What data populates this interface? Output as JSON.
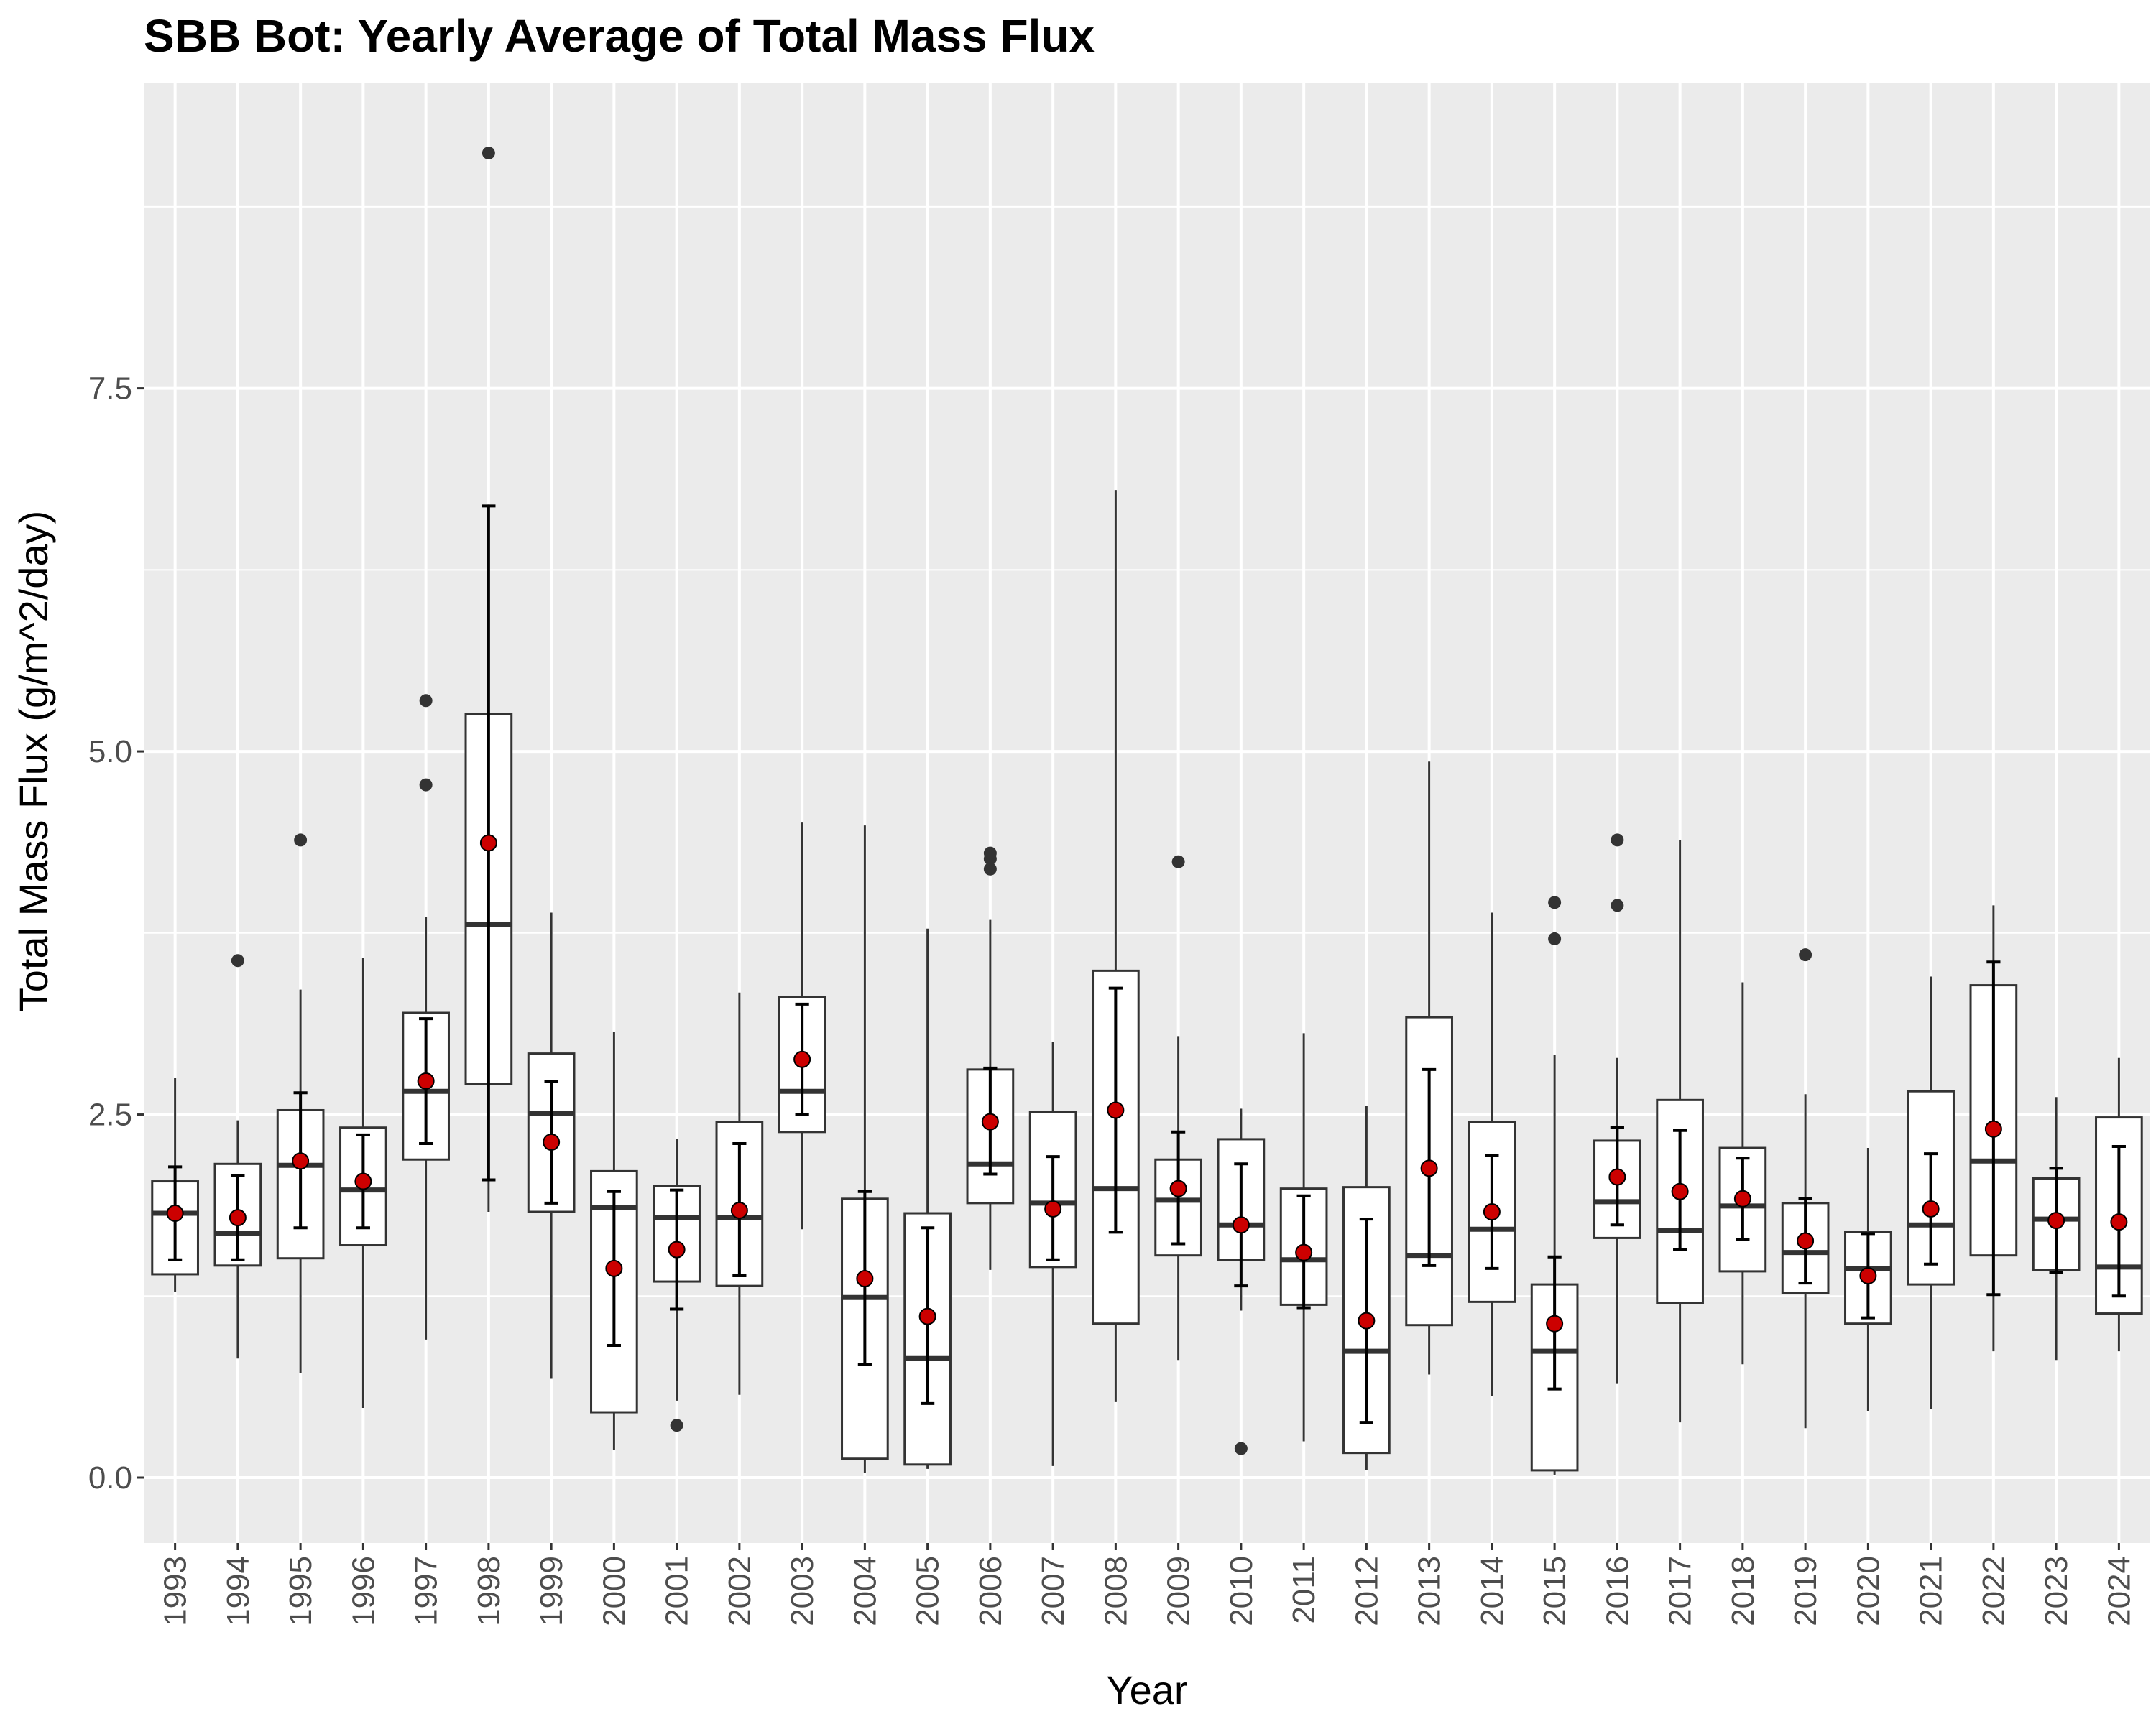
{
  "chart_data": {
    "type": "box",
    "title": "SBB Bot: Yearly Average of Total Mass Flux",
    "xlabel": "Year",
    "ylabel": "Total Mass Flux (g/m^2/day)",
    "ylim": [
      -0.45,
      9.6
    ],
    "yticks": [
      0.0,
      2.5,
      5.0,
      7.5
    ],
    "ytick_labels": [
      "0.0",
      "2.5",
      "5.0",
      "7.5"
    ],
    "grid": true,
    "legend": "none",
    "colors": {
      "panel": "#ebebeb",
      "grid": "#ffffff",
      "box_fill": "#ffffff",
      "box_line": "#333333",
      "median": "#333333",
      "mean_point": "#cc0000",
      "outlier": "#333333",
      "error_bar": "#000000"
    },
    "boxes": [
      {
        "year": "1993",
        "whisker_low": 1.28,
        "q1": 1.4,
        "median": 1.82,
        "q3": 2.04,
        "whisker_high": 2.75,
        "mean": 1.82,
        "mean_low": 1.5,
        "mean_high": 2.14,
        "outliers": []
      },
      {
        "year": "1994",
        "whisker_low": 0.82,
        "q1": 1.46,
        "median": 1.68,
        "q3": 2.16,
        "whisker_high": 2.46,
        "mean": 1.79,
        "mean_low": 1.5,
        "mean_high": 2.08,
        "outliers": [
          3.56
        ]
      },
      {
        "year": "1995",
        "whisker_low": 0.72,
        "q1": 1.51,
        "median": 2.15,
        "q3": 2.53,
        "whisker_high": 3.36,
        "mean": 2.18,
        "mean_low": 1.72,
        "mean_high": 2.65,
        "outliers": [
          4.39
        ]
      },
      {
        "year": "1996",
        "whisker_low": 0.48,
        "q1": 1.6,
        "median": 1.98,
        "q3": 2.41,
        "whisker_high": 3.58,
        "mean": 2.04,
        "mean_low": 1.72,
        "mean_high": 2.36,
        "outliers": []
      },
      {
        "year": "1997",
        "whisker_low": 0.95,
        "q1": 2.19,
        "median": 2.66,
        "q3": 3.2,
        "whisker_high": 3.86,
        "mean": 2.73,
        "mean_low": 2.3,
        "mean_high": 3.16,
        "outliers": [
          4.77,
          5.35
        ]
      },
      {
        "year": "1998",
        "whisker_low": 1.83,
        "q1": 2.71,
        "median": 3.81,
        "q3": 5.26,
        "whisker_high": 6.7,
        "mean": 4.37,
        "mean_low": 2.05,
        "mean_high": 6.69,
        "outliers": [
          9.12
        ]
      },
      {
        "year": "1999",
        "whisker_low": 0.68,
        "q1": 1.83,
        "median": 2.51,
        "q3": 2.92,
        "whisker_high": 3.89,
        "mean": 2.31,
        "mean_low": 1.89,
        "mean_high": 2.73,
        "outliers": []
      },
      {
        "year": "2000",
        "whisker_low": 0.19,
        "q1": 0.45,
        "median": 1.86,
        "q3": 2.11,
        "whisker_high": 3.07,
        "mean": 1.44,
        "mean_low": 0.91,
        "mean_high": 1.97,
        "outliers": []
      },
      {
        "year": "2001",
        "whisker_low": 0.53,
        "q1": 1.35,
        "median": 1.79,
        "q3": 2.01,
        "whisker_high": 2.33,
        "mean": 1.57,
        "mean_low": 1.16,
        "mean_high": 1.98,
        "outliers": [
          0.36
        ]
      },
      {
        "year": "2002",
        "whisker_low": 0.57,
        "q1": 1.32,
        "median": 1.79,
        "q3": 2.45,
        "whisker_high": 3.34,
        "mean": 1.84,
        "mean_low": 1.39,
        "mean_high": 2.3,
        "outliers": []
      },
      {
        "year": "2003",
        "whisker_low": 1.71,
        "q1": 2.38,
        "median": 2.66,
        "q3": 3.31,
        "whisker_high": 4.51,
        "mean": 2.88,
        "mean_low": 2.5,
        "mean_high": 3.26,
        "outliers": []
      },
      {
        "year": "2004",
        "whisker_low": 0.03,
        "q1": 0.13,
        "median": 1.24,
        "q3": 1.92,
        "whisker_high": 4.49,
        "mean": 1.37,
        "mean_low": 0.78,
        "mean_high": 1.97,
        "outliers": []
      },
      {
        "year": "2005",
        "whisker_low": 0.06,
        "q1": 0.09,
        "median": 0.82,
        "q3": 1.82,
        "whisker_high": 3.78,
        "mean": 1.11,
        "mean_low": 0.51,
        "mean_high": 1.72,
        "outliers": []
      },
      {
        "year": "2006",
        "whisker_low": 1.43,
        "q1": 1.89,
        "median": 2.16,
        "q3": 2.81,
        "whisker_high": 3.84,
        "mean": 2.45,
        "mean_low": 2.09,
        "mean_high": 2.82,
        "outliers": [
          4.19,
          4.26,
          4.3
        ]
      },
      {
        "year": "2007",
        "whisker_low": 0.08,
        "q1": 1.45,
        "median": 1.89,
        "q3": 2.52,
        "whisker_high": 3.0,
        "mean": 1.85,
        "mean_low": 1.5,
        "mean_high": 2.21,
        "outliers": []
      },
      {
        "year": "2008",
        "whisker_low": 0.52,
        "q1": 1.06,
        "median": 1.99,
        "q3": 3.49,
        "whisker_high": 6.8,
        "mean": 2.53,
        "mean_low": 1.69,
        "mean_high": 3.37,
        "outliers": []
      },
      {
        "year": "2009",
        "whisker_low": 0.81,
        "q1": 1.53,
        "median": 1.91,
        "q3": 2.19,
        "whisker_high": 3.04,
        "mean": 1.99,
        "mean_low": 1.61,
        "mean_high": 2.38,
        "outliers": [
          4.24
        ]
      },
      {
        "year": "2010",
        "whisker_low": 1.15,
        "q1": 1.5,
        "median": 1.74,
        "q3": 2.33,
        "whisker_high": 2.54,
        "mean": 1.74,
        "mean_low": 1.32,
        "mean_high": 2.16,
        "outliers": [
          0.2
        ]
      },
      {
        "year": "2011",
        "whisker_low": 0.25,
        "q1": 1.19,
        "median": 1.5,
        "q3": 1.99,
        "whisker_high": 3.06,
        "mean": 1.55,
        "mean_low": 1.17,
        "mean_high": 1.94,
        "outliers": []
      },
      {
        "year": "2012",
        "whisker_low": 0.05,
        "q1": 0.17,
        "median": 0.87,
        "q3": 2.0,
        "whisker_high": 2.56,
        "mean": 1.08,
        "mean_low": 0.38,
        "mean_high": 1.78,
        "outliers": []
      },
      {
        "year": "2013",
        "whisker_low": 0.71,
        "q1": 1.05,
        "median": 1.53,
        "q3": 3.17,
        "whisker_high": 4.93,
        "mean": 2.13,
        "mean_low": 1.46,
        "mean_high": 2.81,
        "outliers": []
      },
      {
        "year": "2014",
        "whisker_low": 0.56,
        "q1": 1.21,
        "median": 1.71,
        "q3": 2.45,
        "whisker_high": 3.89,
        "mean": 1.83,
        "mean_low": 1.44,
        "mean_high": 2.22,
        "outliers": []
      },
      {
        "year": "2015",
        "whisker_low": 0.02,
        "q1": 0.05,
        "median": 0.87,
        "q3": 1.33,
        "whisker_high": 2.91,
        "mean": 1.06,
        "mean_low": 0.61,
        "mean_high": 1.52,
        "outliers": [
          3.71,
          3.96
        ]
      },
      {
        "year": "2016",
        "whisker_low": 0.65,
        "q1": 1.65,
        "median": 1.9,
        "q3": 2.32,
        "whisker_high": 2.89,
        "mean": 2.07,
        "mean_low": 1.74,
        "mean_high": 2.41,
        "outliers": [
          3.94,
          4.39
        ]
      },
      {
        "year": "2017",
        "whisker_low": 0.38,
        "q1": 1.2,
        "median": 1.7,
        "q3": 2.6,
        "whisker_high": 4.39,
        "mean": 1.97,
        "mean_low": 1.57,
        "mean_high": 2.39,
        "outliers": []
      },
      {
        "year": "2018",
        "whisker_low": 0.78,
        "q1": 1.42,
        "median": 1.87,
        "q3": 2.27,
        "whisker_high": 3.41,
        "mean": 1.92,
        "mean_low": 1.64,
        "mean_high": 2.2,
        "outliers": []
      },
      {
        "year": "2019",
        "whisker_low": 0.34,
        "q1": 1.27,
        "median": 1.55,
        "q3": 1.89,
        "whisker_high": 2.64,
        "mean": 1.63,
        "mean_low": 1.34,
        "mean_high": 1.92,
        "outliers": [
          3.6
        ]
      },
      {
        "year": "2020",
        "whisker_low": 0.46,
        "q1": 1.06,
        "median": 1.44,
        "q3": 1.69,
        "whisker_high": 2.27,
        "mean": 1.39,
        "mean_low": 1.1,
        "mean_high": 1.68,
        "outliers": []
      },
      {
        "year": "2021",
        "whisker_low": 0.47,
        "q1": 1.33,
        "median": 1.74,
        "q3": 2.66,
        "whisker_high": 3.45,
        "mean": 1.85,
        "mean_low": 1.47,
        "mean_high": 2.23,
        "outliers": []
      },
      {
        "year": "2022",
        "whisker_low": 0.87,
        "q1": 1.53,
        "median": 2.18,
        "q3": 3.39,
        "whisker_high": 3.94,
        "mean": 2.4,
        "mean_low": 1.26,
        "mean_high": 3.55,
        "outliers": []
      },
      {
        "year": "2023",
        "whisker_low": 0.81,
        "q1": 1.43,
        "median": 1.78,
        "q3": 2.06,
        "whisker_high": 2.62,
        "mean": 1.77,
        "mean_low": 1.41,
        "mean_high": 2.13,
        "outliers": []
      },
      {
        "year": "2024",
        "whisker_low": 0.87,
        "q1": 1.13,
        "median": 1.45,
        "q3": 2.48,
        "whisker_high": 2.89,
        "mean": 1.76,
        "mean_low": 1.25,
        "mean_high": 2.28,
        "outliers": []
      }
    ]
  }
}
